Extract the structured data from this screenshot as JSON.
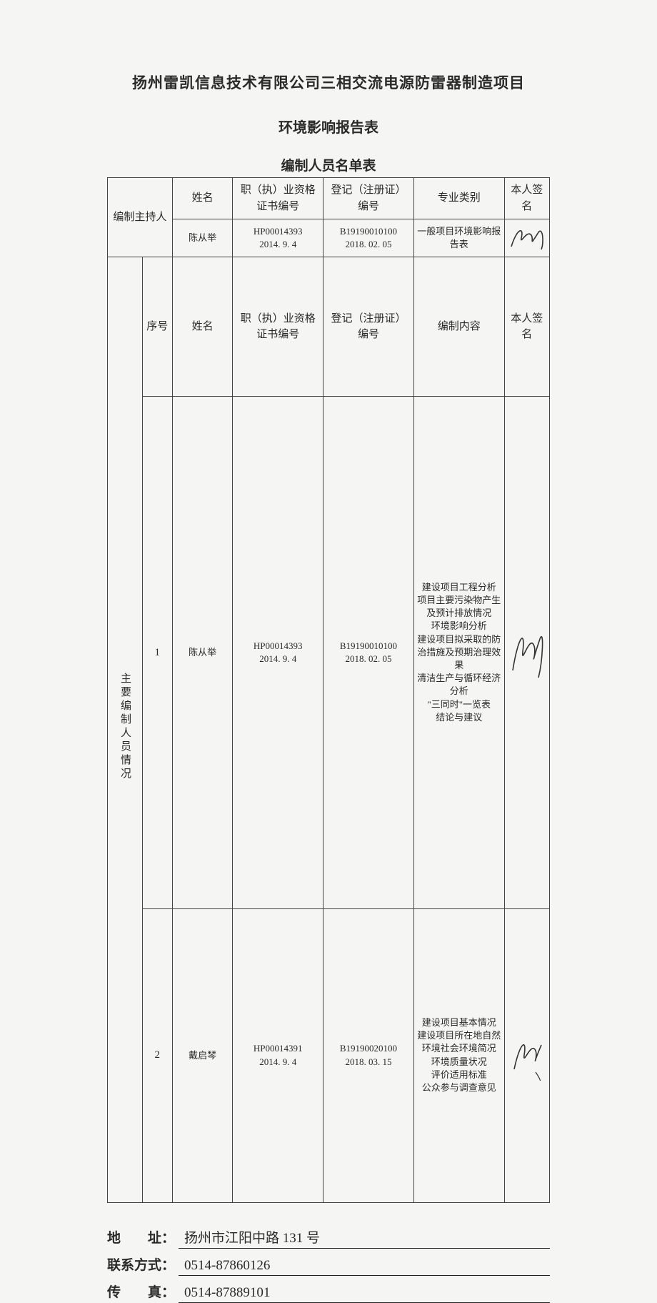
{
  "titles": {
    "main": "扬州雷凯信息技术有限公司三相交流电源防雷器制造项目",
    "sub": "环境影响报告表",
    "table": "编制人员名单表"
  },
  "header_row1": {
    "bianzhi_zhuchi": "编制主持人",
    "name": "姓名",
    "cert": "职（执）业资格证书编号",
    "reg": "登记（注册证）编号",
    "spec": "专业类别",
    "sig": "本人签名"
  },
  "chair_row": {
    "name": "陈从举",
    "cert": "HP00014393\n2014. 9. 4",
    "reg": "B19190010100\n2018. 02. 05",
    "spec": "一般项目环境影响报告表"
  },
  "header_row2": {
    "role": "主要编制人员情况",
    "seq": "序号",
    "name": "姓名",
    "cert": "职（执）业资格证书编号",
    "reg": "登记（注册证）编号",
    "spec": "编制内容",
    "sig": "本人签名"
  },
  "rows": [
    {
      "seq": "1",
      "name": "陈从举",
      "cert": "HP00014393\n2014. 9. 4",
      "reg": "B19190010100\n2018. 02. 05",
      "content": "建设项目工程分析\n项目主要污染物产生及预计排放情况\n环境影响分析\n建设项目拟采取的防治措施及预期治理效果\n清洁生产与循环经济分析\n\"三同时\"一览表\n结论与建议"
    },
    {
      "seq": "2",
      "name": "戴启琴",
      "cert": "HP00014391\n2014. 9. 4",
      "reg": "B19190020100\n2018. 03. 15",
      "content": "建设项目基本情况\n建设项目所在地自然环境社会环境简况\n环境质量状况\n评价适用标准\n公众参与调查意见"
    }
  ],
  "contacts": {
    "address_label": "地　　址：",
    "address_value": "扬州市江阳中路 131 号",
    "phone_label": "联系方式：",
    "phone_value": "0514-87860126",
    "fax_label": "传　　真：",
    "fax_value": "0514-87889101"
  },
  "colors": {
    "bg": "#f5f5f3",
    "text": "#2a2a2a",
    "border": "#444444",
    "underline": "#222222"
  }
}
